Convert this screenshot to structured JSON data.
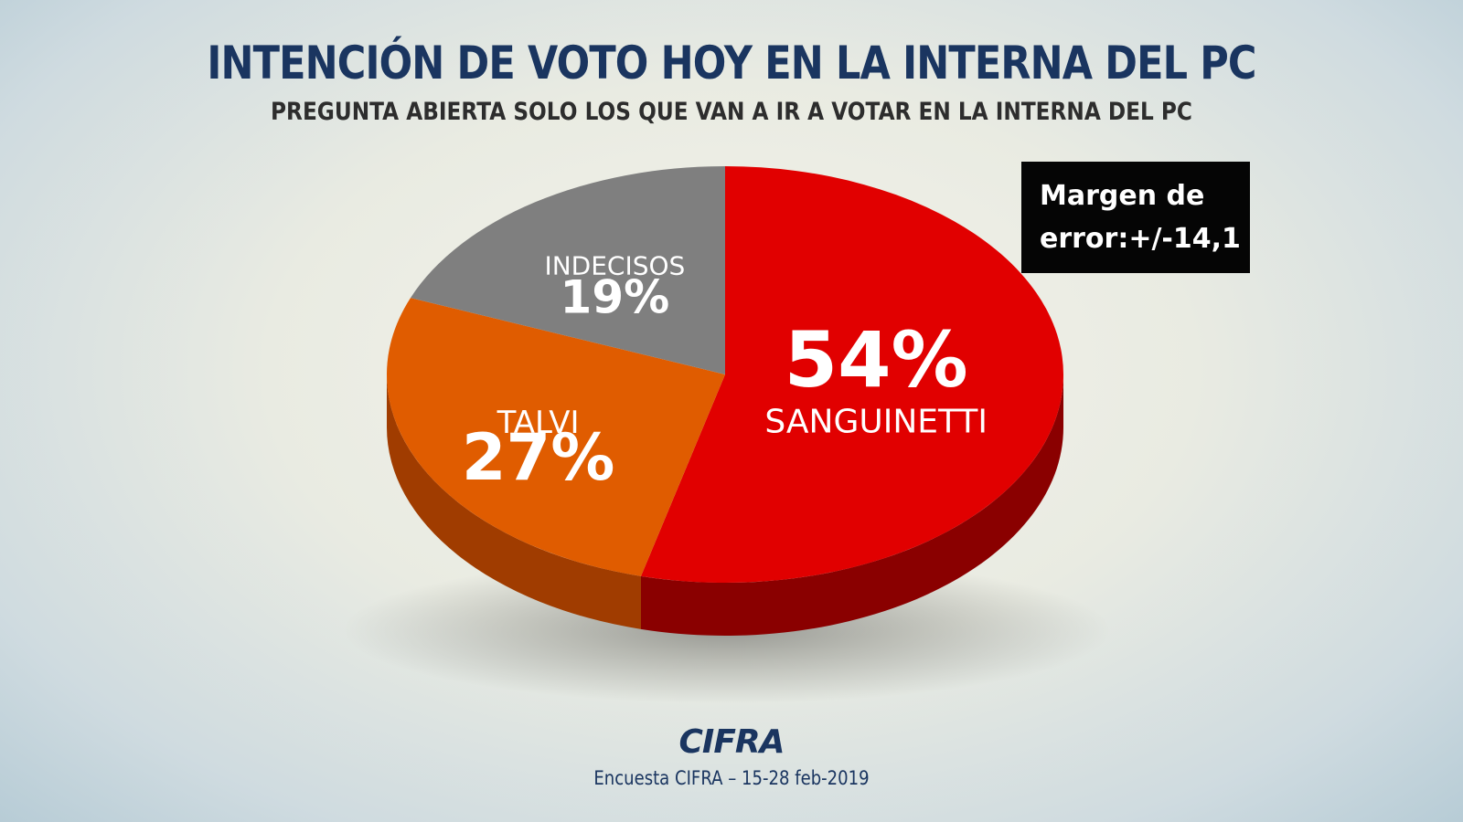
{
  "header": {
    "title": "INTENCIÓN DE VOTO HOY EN LA INTERNA DEL PC",
    "subtitle": "PREGUNTA ABIERTA SOLO LOS QUE VAN A IR A VOTAR EN LA INTERNA DEL PC"
  },
  "margin_box": {
    "line1": "Margen de",
    "line2": "error:+/-14,1"
  },
  "chart_data": {
    "type": "pie",
    "title": "INTENCIÓN DE VOTO HOY EN LA INTERNA DEL PC",
    "subtitle": "PREGUNTA ABIERTA SOLO LOS QUE VAN A IR A VOTAR EN LA INTERNA DEL PC",
    "slices": [
      {
        "label": "SANGUINETTI",
        "value": 54,
        "display": "54%",
        "color": "#e10000",
        "side_color": "#8a0000"
      },
      {
        "label": "TALVI",
        "value": 27,
        "display": "27%",
        "color": "#e05c00",
        "side_color": "#a03c00"
      },
      {
        "label": "INDECISOS",
        "value": 19,
        "display": "19%",
        "color": "#7f7f7f",
        "side_color": "#555555"
      }
    ]
  },
  "footer": {
    "logo": "CIFRA",
    "source": "Encuesta CIFRA – 15-28 feb-2019"
  }
}
